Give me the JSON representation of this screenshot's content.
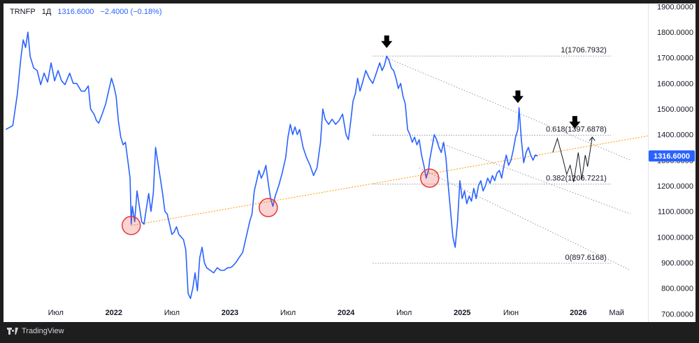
{
  "header": {
    "symbol": "TRNFP",
    "interval": "1Д",
    "price": "1316.6000",
    "change": "−2.4000 (−0.18%)"
  },
  "footer": {
    "brand": "TradingView"
  },
  "colors": {
    "price_line": "#2962ff",
    "trend_line": "#ff9800",
    "circle": "#e53935",
    "grid_dotted": "#9598a1",
    "price_badge": "#2962ff"
  },
  "chart_data": {
    "type": "line",
    "y_axis": {
      "ticks": [
        "1900.0000",
        "1800.0000",
        "1700.0000",
        "1600.0000",
        "1500.0000",
        "1400.0000",
        "1300.0000",
        "1200.0000",
        "1100.0000",
        "1000.0000",
        "900.0000",
        "800.0000",
        "700.0000"
      ],
      "range": [
        668,
        1912
      ]
    },
    "x_axis": {
      "ticks": [
        "Июл",
        "2022",
        "Июл",
        "2023",
        "Июл",
        "2024",
        "Июл",
        "2025",
        "Июн",
        "2026",
        "Май"
      ],
      "ticks_t": [
        2021.5,
        2022.0,
        2022.5,
        2023.0,
        2023.5,
        2024.0,
        2024.5,
        2025.0,
        2025.42,
        2026.0,
        2026.33
      ],
      "range": [
        2021.05,
        2026.6
      ]
    },
    "last_price_label": "1316.6000",
    "last_price": 1316.6,
    "series": [
      {
        "points": [
          [
            2021.07,
            1420
          ],
          [
            2021.13,
            1435
          ],
          [
            2021.17,
            1560
          ],
          [
            2021.2,
            1700
          ],
          [
            2021.22,
            1770
          ],
          [
            2021.24,
            1740
          ],
          [
            2021.26,
            1800
          ],
          [
            2021.28,
            1705
          ],
          [
            2021.31,
            1660
          ],
          [
            2021.34,
            1650
          ],
          [
            2021.37,
            1595
          ],
          [
            2021.4,
            1640
          ],
          [
            2021.43,
            1605
          ],
          [
            2021.46,
            1680
          ],
          [
            2021.49,
            1610
          ],
          [
            2021.52,
            1650
          ],
          [
            2021.55,
            1610
          ],
          [
            2021.58,
            1595
          ],
          [
            2021.62,
            1640
          ],
          [
            2021.65,
            1600
          ],
          [
            2021.68,
            1600
          ],
          [
            2021.72,
            1570
          ],
          [
            2021.75,
            1570
          ],
          [
            2021.78,
            1590
          ],
          [
            2021.8,
            1500
          ],
          [
            2021.83,
            1480
          ],
          [
            2021.85,
            1455
          ],
          [
            2021.87,
            1445
          ],
          [
            2021.9,
            1480
          ],
          [
            2021.93,
            1520
          ],
          [
            2021.96,
            1580
          ],
          [
            2021.98,
            1620
          ],
          [
            2022.0,
            1590
          ],
          [
            2022.02,
            1550
          ],
          [
            2022.04,
            1450
          ],
          [
            2022.06,
            1390
          ],
          [
            2022.08,
            1360
          ],
          [
            2022.1,
            1370
          ],
          [
            2022.12,
            1300
          ],
          [
            2022.14,
            1230
          ],
          [
            2022.15,
            1050
          ],
          [
            2022.16,
            1120
          ],
          [
            2022.18,
            1060
          ],
          [
            2022.2,
            1180
          ],
          [
            2022.22,
            1120
          ],
          [
            2022.24,
            1060
          ],
          [
            2022.26,
            1050
          ],
          [
            2022.28,
            1110
          ],
          [
            2022.3,
            1170
          ],
          [
            2022.32,
            1100
          ],
          [
            2022.34,
            1170
          ],
          [
            2022.36,
            1350
          ],
          [
            2022.38,
            1290
          ],
          [
            2022.4,
            1230
          ],
          [
            2022.42,
            1170
          ],
          [
            2022.44,
            1100
          ],
          [
            2022.46,
            1090
          ],
          [
            2022.48,
            1050
          ],
          [
            2022.5,
            1010
          ],
          [
            2022.52,
            1020
          ],
          [
            2022.54,
            1040
          ],
          [
            2022.56,
            1010
          ],
          [
            2022.58,
            1000
          ],
          [
            2022.6,
            990
          ],
          [
            2022.62,
            950
          ],
          [
            2022.64,
            780
          ],
          [
            2022.66,
            760
          ],
          [
            2022.68,
            800
          ],
          [
            2022.7,
            860
          ],
          [
            2022.72,
            790
          ],
          [
            2022.74,
            920
          ],
          [
            2022.76,
            960
          ],
          [
            2022.78,
            900
          ],
          [
            2022.8,
            880
          ],
          [
            2022.83,
            870
          ],
          [
            2022.86,
            860
          ],
          [
            2022.89,
            880
          ],
          [
            2022.92,
            870
          ],
          [
            2022.95,
            870
          ],
          [
            2022.98,
            880
          ],
          [
            2023.0,
            880
          ],
          [
            2023.02,
            885
          ],
          [
            2023.05,
            900
          ],
          [
            2023.08,
            920
          ],
          [
            2023.11,
            940
          ],
          [
            2023.14,
            1000
          ],
          [
            2023.17,
            1060
          ],
          [
            2023.19,
            1090
          ],
          [
            2023.21,
            1180
          ],
          [
            2023.23,
            1220
          ],
          [
            2023.25,
            1260
          ],
          [
            2023.27,
            1230
          ],
          [
            2023.29,
            1250
          ],
          [
            2023.31,
            1280
          ],
          [
            2023.33,
            1210
          ],
          [
            2023.35,
            1150
          ],
          [
            2023.37,
            1120
          ],
          [
            2023.39,
            1160
          ],
          [
            2023.42,
            1200
          ],
          [
            2023.45,
            1250
          ],
          [
            2023.48,
            1310
          ],
          [
            2023.5,
            1390
          ],
          [
            2023.52,
            1440
          ],
          [
            2023.54,
            1400
          ],
          [
            2023.56,
            1430
          ],
          [
            2023.58,
            1400
          ],
          [
            2023.6,
            1420
          ],
          [
            2023.63,
            1350
          ],
          [
            2023.66,
            1310
          ],
          [
            2023.69,
            1280
          ],
          [
            2023.72,
            1240
          ],
          [
            2023.75,
            1270
          ],
          [
            2023.78,
            1370
          ],
          [
            2023.8,
            1500
          ],
          [
            2023.82,
            1460
          ],
          [
            2023.85,
            1440
          ],
          [
            2023.88,
            1460
          ],
          [
            2023.91,
            1440
          ],
          [
            2023.94,
            1455
          ],
          [
            2023.97,
            1480
          ],
          [
            2024.0,
            1400
          ],
          [
            2024.02,
            1380
          ],
          [
            2024.04,
            1450
          ],
          [
            2024.06,
            1530
          ],
          [
            2024.08,
            1560
          ],
          [
            2024.1,
            1620
          ],
          [
            2024.12,
            1570
          ],
          [
            2024.14,
            1600
          ],
          [
            2024.17,
            1650
          ],
          [
            2024.2,
            1620
          ],
          [
            2024.23,
            1600
          ],
          [
            2024.26,
            1640
          ],
          [
            2024.29,
            1680
          ],
          [
            2024.31,
            1650
          ],
          [
            2024.33,
            1670
          ],
          [
            2024.35,
            1706
          ],
          [
            2024.37,
            1690
          ],
          [
            2024.39,
            1660
          ],
          [
            2024.41,
            1650
          ],
          [
            2024.43,
            1620
          ],
          [
            2024.45,
            1580
          ],
          [
            2024.47,
            1600
          ],
          [
            2024.49,
            1550
          ],
          [
            2024.51,
            1520
          ],
          [
            2024.53,
            1420
          ],
          [
            2024.55,
            1400
          ],
          [
            2024.57,
            1370
          ],
          [
            2024.59,
            1390
          ],
          [
            2024.61,
            1360
          ],
          [
            2024.63,
            1380
          ],
          [
            2024.65,
            1320
          ],
          [
            2024.67,
            1280
          ],
          [
            2024.69,
            1230
          ],
          [
            2024.71,
            1260
          ],
          [
            2024.72,
            1300
          ],
          [
            2024.74,
            1350
          ],
          [
            2024.76,
            1400
          ],
          [
            2024.78,
            1380
          ],
          [
            2024.8,
            1350
          ],
          [
            2024.82,
            1330
          ],
          [
            2024.84,
            1370
          ],
          [
            2024.86,
            1310
          ],
          [
            2024.88,
            1200
          ],
          [
            2024.9,
            1100
          ],
          [
            2024.92,
            1000
          ],
          [
            2024.94,
            960
          ],
          [
            2024.96,
            1060
          ],
          [
            2024.98,
            1220
          ],
          [
            2025.0,
            1150
          ],
          [
            2025.02,
            1180
          ],
          [
            2025.04,
            1130
          ],
          [
            2025.06,
            1160
          ],
          [
            2025.08,
            1140
          ],
          [
            2025.1,
            1190
          ],
          [
            2025.12,
            1150
          ],
          [
            2025.14,
            1200
          ],
          [
            2025.16,
            1220
          ],
          [
            2025.18,
            1180
          ],
          [
            2025.2,
            1200
          ],
          [
            2025.22,
            1230
          ],
          [
            2025.24,
            1210
          ],
          [
            2025.26,
            1240
          ],
          [
            2025.28,
            1220
          ],
          [
            2025.3,
            1250
          ],
          [
            2025.32,
            1260
          ],
          [
            2025.34,
            1230
          ],
          [
            2025.36,
            1280
          ],
          [
            2025.38,
            1320
          ],
          [
            2025.4,
            1280
          ],
          [
            2025.42,
            1300
          ],
          [
            2025.44,
            1340
          ],
          [
            2025.46,
            1390
          ],
          [
            2025.48,
            1420
          ],
          [
            2025.49,
            1505
          ],
          [
            2025.51,
            1380
          ],
          [
            2025.53,
            1290
          ],
          [
            2025.55,
            1330
          ],
          [
            2025.57,
            1350
          ],
          [
            2025.59,
            1320
          ],
          [
            2025.61,
            1300
          ],
          [
            2025.63,
            1320
          ],
          [
            2025.65,
            1316.6
          ]
        ]
      }
    ],
    "fib_levels": [
      {
        "label": "1(1706.7932)",
        "value": 1706.7932,
        "t_from": 2024.23,
        "t_to": 2026.28
      },
      {
        "label": "0.618(1397.6878)",
        "value": 1397.6878,
        "t_from": 2024.23,
        "t_to": 2026.28
      },
      {
        "label": "0.382(1206.7221)",
        "value": 1206.7221,
        "t_from": 2024.23,
        "t_to": 2026.28
      },
      {
        "label": "0(897.6168)",
        "value": 897.6168,
        "t_from": 2024.23,
        "t_to": 2026.28
      }
    ],
    "trend_line": {
      "from": [
        2022.15,
        1045
      ],
      "to": [
        2026.6,
        1395
      ]
    },
    "channel_lines": [
      {
        "from": [
          2024.35,
          1700
        ],
        "to": [
          2026.45,
          1300
        ]
      },
      {
        "from": [
          2024.73,
          1380
        ],
        "to": [
          2026.45,
          1090
        ]
      },
      {
        "from": [
          2024.63,
          1270
        ],
        "to": [
          2026.45,
          870
        ]
      }
    ],
    "circles": [
      [
        2022.15,
        1045
      ],
      [
        2023.33,
        1115
      ],
      [
        2024.72,
        1230
      ]
    ],
    "arrows": [
      [
        2024.35,
        1760
      ],
      [
        2025.48,
        1545
      ],
      [
        2025.97,
        1445
      ]
    ],
    "projection": [
      [
        2025.78,
        1330
      ],
      [
        2025.82,
        1385
      ],
      [
        2025.87,
        1300
      ],
      [
        2025.9,
        1245
      ],
      [
        2025.93,
        1280
      ],
      [
        2025.96,
        1215
      ],
      [
        2026.0,
        1330
      ],
      [
        2026.03,
        1225
      ],
      [
        2026.06,
        1320
      ],
      [
        2026.08,
        1275
      ],
      [
        2026.1,
        1330
      ],
      [
        2026.12,
        1390
      ]
    ]
  }
}
